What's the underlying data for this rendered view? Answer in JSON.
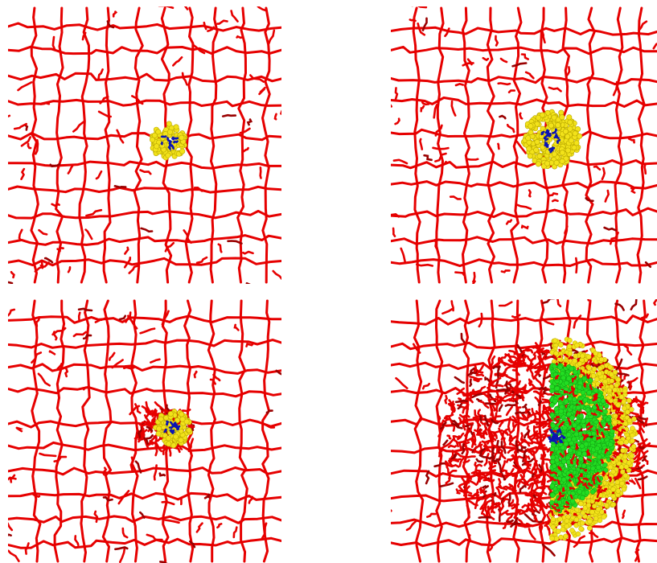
{
  "figure": {
    "background": "#ffffff",
    "colors": {
      "network": "#e60000",
      "network_dark": "#9a0000",
      "shell": "#f2e21a",
      "shell_dark": "#b9a800",
      "core": "#0a14b4",
      "inner": "#22dd22"
    },
    "panels": [
      {
        "id": "panel-top-left",
        "stage": 1,
        "shell_scale": 1.0,
        "growth": 0.0
      },
      {
        "id": "panel-top-right",
        "stage": 2,
        "shell_scale": 1.6,
        "growth": 0.0
      },
      {
        "id": "panel-bottom-left",
        "stage": 3,
        "shell_scale": 1.0,
        "growth": 0.25
      },
      {
        "id": "panel-bottom-right",
        "stage": 4,
        "shell_scale": 3.3,
        "growth": 1.0
      }
    ]
  }
}
